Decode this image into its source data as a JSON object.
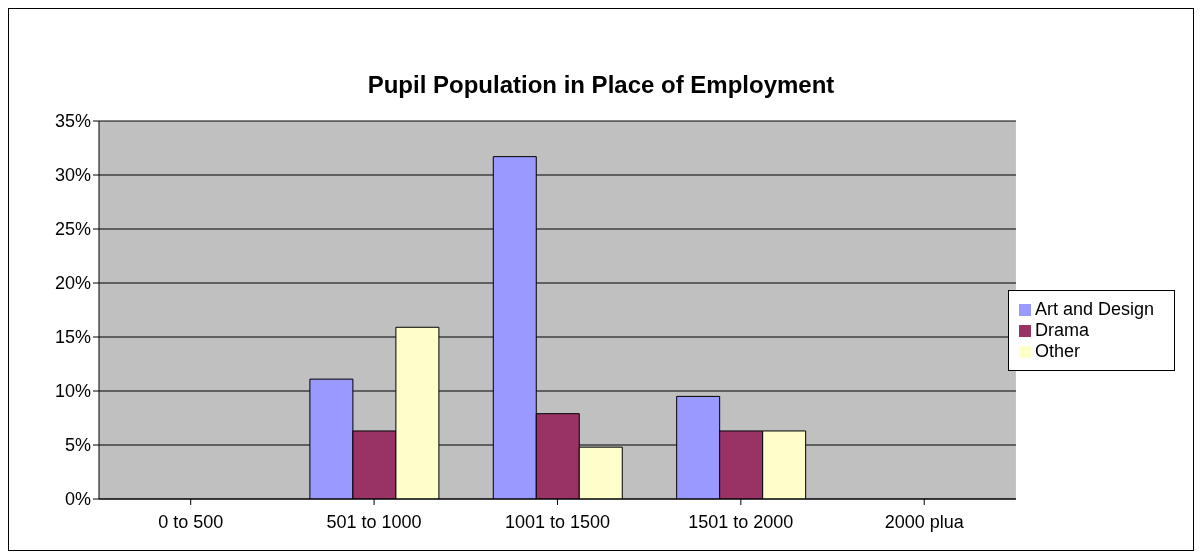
{
  "chart_data": {
    "type": "bar",
    "title": "Pupil Population in Place of Employment",
    "categories": [
      "0 to 500",
      "501 to 1000",
      "1001 to 1500",
      "1501 to 2000",
      "2000 plua"
    ],
    "series": [
      {
        "name": "Art and Design",
        "color": "#9999ff",
        "values": [
          0,
          11.1,
          31.7,
          9.5,
          0
        ]
      },
      {
        "name": "Drama",
        "color": "#993366",
        "values": [
          0,
          6.3,
          7.9,
          6.3,
          0
        ]
      },
      {
        "name": "Other",
        "color": "#ffffcc",
        "values": [
          0,
          15.9,
          4.8,
          6.3,
          0
        ]
      }
    ],
    "ylim": [
      0,
      35
    ],
    "yticks": [
      {
        "value": 0,
        "label": "0%"
      },
      {
        "value": 5,
        "label": "5%"
      },
      {
        "value": 10,
        "label": "10%"
      },
      {
        "value": 15,
        "label": "15%"
      },
      {
        "value": 20,
        "label": "20%"
      },
      {
        "value": 25,
        "label": "25%"
      },
      {
        "value": 30,
        "label": "30%"
      },
      {
        "value": 35,
        "label": "35%"
      }
    ],
    "grid": "y",
    "legend": "right"
  }
}
